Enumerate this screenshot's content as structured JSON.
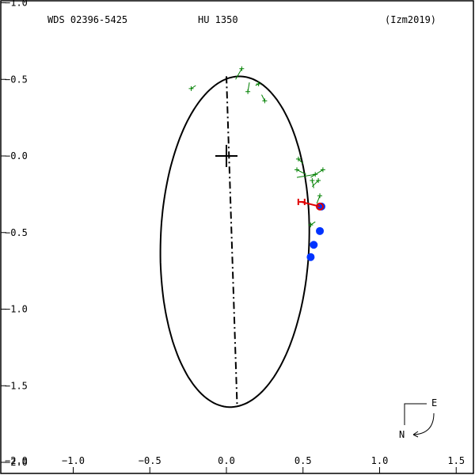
{
  "header": {
    "left": "WDS 02396-5425",
    "center": "HU 1350",
    "right": "(Izm2019)"
  },
  "compass": {
    "east": "E",
    "north": "N"
  },
  "colors": {
    "orbit": "#000000",
    "obs": "#008000",
    "red": "#e00000",
    "blue": "#0033ff",
    "frame": "#000000"
  },
  "chart_data": {
    "type": "scatter",
    "title": "",
    "xlim": [
      -2.0,
      1.6
    ],
    "ylim": [
      -2.0,
      -1.0
    ],
    "x_ticks": [
      {
        "value": -1.0,
        "label": "−1.0"
      },
      {
        "value": -0.5,
        "label": "−0.5"
      },
      {
        "value": 0.0,
        "label": "0.0"
      },
      {
        "value": 0.5,
        "label": "0.5"
      },
      {
        "value": 1.0,
        "label": "1.0"
      },
      {
        "value": 1.5,
        "label": "1.5"
      }
    ],
    "x_edge_label": {
      "value": -2.0,
      "label": "−2.0"
    },
    "y_ticks": [
      {
        "value": -1.0,
        "label": "−1.0"
      },
      {
        "value": -0.5,
        "label": "−0.5"
      },
      {
        "value": 0.0,
        "label": "−0.0"
      },
      {
        "value": 0.5,
        "label": "−0.5"
      },
      {
        "value": 1.0,
        "label": "−1.0"
      },
      {
        "value": 1.5,
        "label": "−1.5"
      },
      {
        "value": 2.0,
        "label": "−2.0"
      }
    ],
    "primary": {
      "x": 0.0,
      "y": 0.0
    },
    "orbit_ellipse": {
      "cx": 0.055,
      "cy": 0.56,
      "rx": 0.485,
      "ry": 1.08,
      "angle_deg": 2.0
    },
    "line_of_nodes": {
      "from": [
        0.0,
        -0.52
      ],
      "to": [
        0.07,
        1.63
      ]
    },
    "observations": [
      {
        "x": -0.23,
        "y": -0.44,
        "px": -0.2,
        "py": -0.46
      },
      {
        "x": 0.1,
        "y": -0.57,
        "px": 0.06,
        "py": -0.5
      },
      {
        "x": 0.14,
        "y": -0.42,
        "px": 0.15,
        "py": -0.48
      },
      {
        "x": 0.21,
        "y": -0.47,
        "px": 0.19,
        "py": -0.46
      },
      {
        "x": 0.25,
        "y": -0.36,
        "px": 0.23,
        "py": -0.4
      },
      {
        "x": 0.58,
        "y": 0.12,
        "px": 0.46,
        "py": 0.14
      },
      {
        "x": 0.47,
        "y": 0.02,
        "px": 0.5,
        "py": 0.05
      },
      {
        "x": 0.46,
        "y": 0.09,
        "px": 0.52,
        "py": 0.12
      },
      {
        "x": 0.63,
        "y": 0.09,
        "px": 0.55,
        "py": 0.14
      },
      {
        "x": 0.6,
        "y": 0.16,
        "px": 0.56,
        "py": 0.2
      },
      {
        "x": 0.56,
        "y": 0.16,
        "px": 0.57,
        "py": 0.21
      },
      {
        "x": 0.61,
        "y": 0.26,
        "px": 0.59,
        "py": 0.31
      },
      {
        "x": 0.55,
        "y": 0.45,
        "px": 0.58,
        "py": 0.43
      }
    ],
    "measured_points": [
      {
        "x": 0.62,
        "y": 0.33
      },
      {
        "x": 0.61,
        "y": 0.49
      },
      {
        "x": 0.57,
        "y": 0.58
      },
      {
        "x": 0.55,
        "y": 0.66
      }
    ],
    "red_point": {
      "x": 0.61,
      "y": 0.33
    },
    "red_bar": {
      "x": 0.49,
      "y": 0.3,
      "px": 0.61,
      "py": 0.33
    }
  }
}
